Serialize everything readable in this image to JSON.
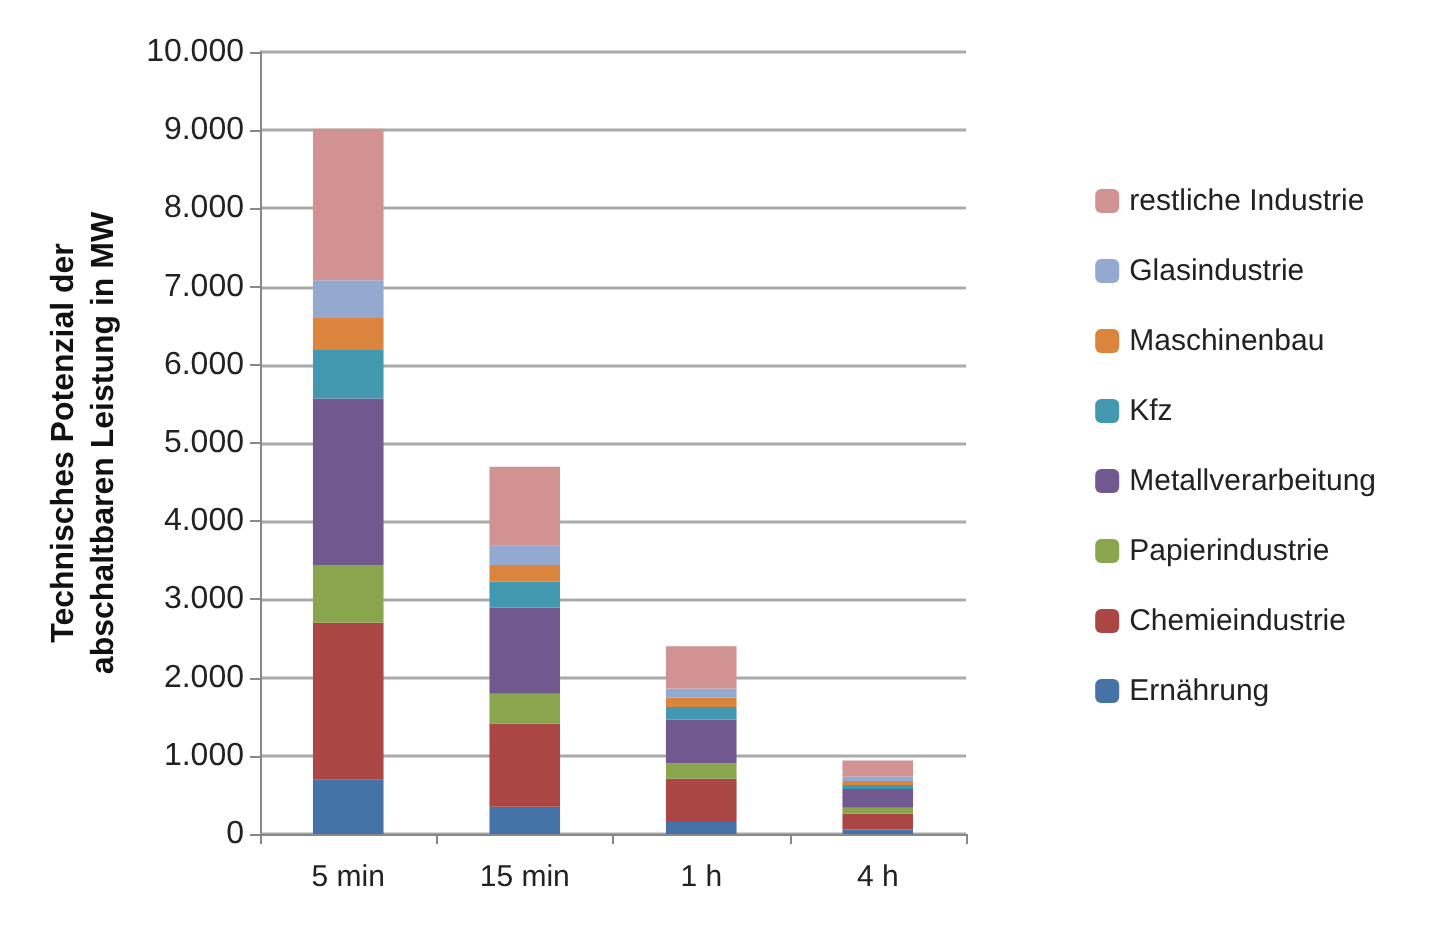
{
  "chart_data": {
    "type": "bar",
    "stacked": true,
    "ylabel": "Technisches Potenzial der\nabschaltbaren Leistung in MW",
    "categories": [
      "5 min",
      "15 min",
      "1 h",
      "4 h"
    ],
    "series": [
      {
        "name": "Ernährung",
        "color": "#4572a7",
        "values": [
          700,
          350,
          155,
          57
        ]
      },
      {
        "name": "Chemieindustrie",
        "color": "#aa4643",
        "values": [
          2000,
          1060,
          550,
          205
        ]
      },
      {
        "name": "Papierindustrie",
        "color": "#89a54e",
        "values": [
          740,
          385,
          200,
          75
        ]
      },
      {
        "name": "Metallverarbeitung",
        "color": "#71588f",
        "values": [
          2130,
          1100,
          560,
          240
        ]
      },
      {
        "name": "Kfz",
        "color": "#4198af",
        "values": [
          620,
          330,
          160,
          50
        ]
      },
      {
        "name": "Maschinenbau",
        "color": "#db843d",
        "values": [
          410,
          215,
          120,
          50
        ]
      },
      {
        "name": "Glasindustrie",
        "color": "#93a9cf",
        "values": [
          480,
          245,
          115,
          58
        ]
      },
      {
        "name": "restliche Industrie",
        "color": "#d19392",
        "values": [
          1940,
          1010,
          540,
          205
        ]
      }
    ],
    "ylim": [
      0,
      10000
    ],
    "yticks": [
      {
        "value": 0,
        "label": "0"
      },
      {
        "value": 1000,
        "label": "1.000"
      },
      {
        "value": 2000,
        "label": "2.000"
      },
      {
        "value": 3000,
        "label": "3.000"
      },
      {
        "value": 4000,
        "label": "4.000"
      },
      {
        "value": 5000,
        "label": "5.000"
      },
      {
        "value": 6000,
        "label": "6.000"
      },
      {
        "value": 7000,
        "label": "7.000"
      },
      {
        "value": 8000,
        "label": "8.000"
      },
      {
        "value": 9000,
        "label": "9.000"
      },
      {
        "value": 10000,
        "label": "10.000"
      }
    ],
    "grid": "y",
    "legend": "right"
  }
}
